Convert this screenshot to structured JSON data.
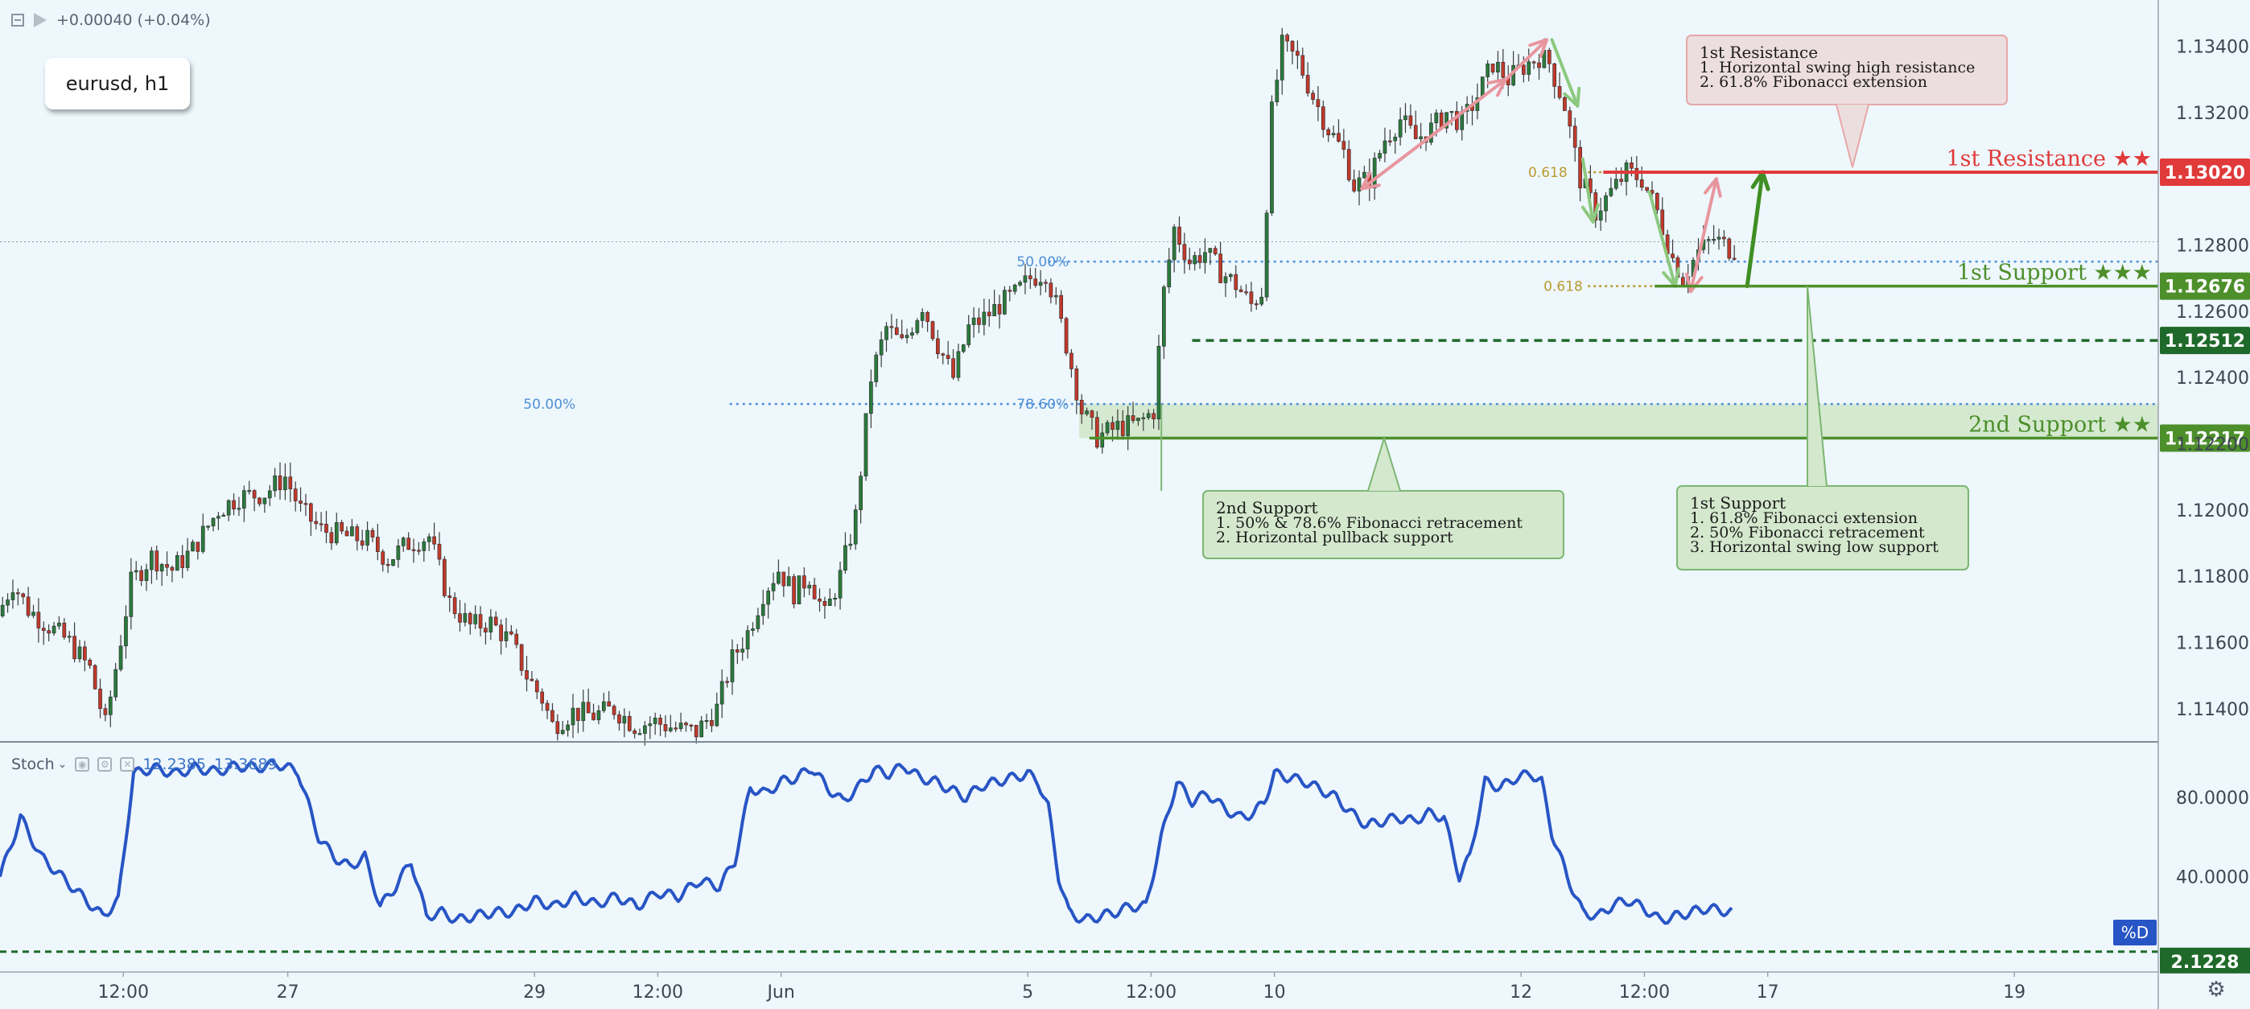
{
  "header": {
    "change_text": "+0.00040 (+0.04%)",
    "symbol_label": "eurusd, h1"
  },
  "colors": {
    "background": "#eef7fc",
    "candle_up": "#2b7a3d",
    "candle_down": "#c0392b",
    "resistance": "#e03a3a",
    "support": "#4d8f2a",
    "support_dark": "#1f6a2a",
    "fib_line": "#4f8fd6",
    "fib_gold": "#b99a30",
    "stoch_line": "#2855c5",
    "arrow_pink": "#e8969e",
    "arrow_green_soft": "#8cc97f",
    "arrow_green": "#3f8f24",
    "arrow_blue_grey": "#8fb0d0"
  },
  "chart_data": {
    "type": "candlestick",
    "price_axis": {
      "min": 1.113,
      "max": 1.1354,
      "ticks": [
        "1.13400",
        "1.13200",
        "1.12800",
        "1.12600",
        "1.12400",
        "1.12200",
        "1.12000",
        "1.11800",
        "1.11600",
        "1.11400"
      ]
    },
    "time_axis": {
      "ticks": [
        {
          "label": "12:00",
          "bar": 24
        },
        {
          "label": "27",
          "bar": 56
        },
        {
          "label": "29",
          "bar": 104
        },
        {
          "label": "12:00",
          "bar": 128
        },
        {
          "label": "Jun",
          "bar": 152
        },
        {
          "label": "5",
          "bar": 200
        },
        {
          "label": "12:00",
          "bar": 224
        },
        {
          "label": "10",
          "bar": 248
        },
        {
          "label": "12",
          "bar": 296
        },
        {
          "label": "12:00",
          "bar": 320
        },
        {
          "label": "17",
          "bar": 344
        },
        {
          "label": "19",
          "bar": 392
        }
      ],
      "bar_count": 420
    },
    "price_path": [
      [
        0,
        1.1168
      ],
      [
        3,
        1.1178
      ],
      [
        6,
        1.117
      ],
      [
        10,
        1.1165
      ],
      [
        14,
        1.116
      ],
      [
        18,
        1.1152
      ],
      [
        21,
        1.1135
      ],
      [
        26,
        1.1178
      ],
      [
        30,
        1.1186
      ],
      [
        34,
        1.1182
      ],
      [
        38,
        1.1188
      ],
      [
        43,
        1.12
      ],
      [
        47,
        1.1204
      ],
      [
        52,
        1.1205
      ],
      [
        56,
        1.121
      ],
      [
        59,
        1.12
      ],
      [
        63,
        1.1194
      ],
      [
        68,
        1.1192
      ],
      [
        72,
        1.1191
      ],
      [
        76,
        1.1185
      ],
      [
        80,
        1.119
      ],
      [
        84,
        1.1192
      ],
      [
        88,
        1.1172
      ],
      [
        92,
        1.1165
      ],
      [
        96,
        1.1166
      ],
      [
        100,
        1.116
      ],
      [
        103,
        1.115
      ],
      [
        106,
        1.1143
      ],
      [
        108,
        1.1135
      ],
      [
        112,
        1.1139
      ],
      [
        116,
        1.1138
      ],
      [
        120,
        1.114
      ],
      [
        124,
        1.1135
      ],
      [
        128,
        1.1136
      ],
      [
        132,
        1.1134
      ],
      [
        136,
        1.1133
      ],
      [
        140,
        1.114
      ],
      [
        143,
        1.1155
      ],
      [
        146,
        1.1163
      ],
      [
        149,
        1.1175
      ],
      [
        152,
        1.1182
      ],
      [
        155,
        1.1175
      ],
      [
        158,
        1.118
      ],
      [
        161,
        1.1168
      ],
      [
        164,
        1.118
      ],
      [
        167,
        1.1198
      ],
      [
        170,
        1.124
      ],
      [
        173,
        1.1255
      ],
      [
        176,
        1.125
      ],
      [
        180,
        1.1262
      ],
      [
        183,
        1.125
      ],
      [
        186,
        1.124
      ],
      [
        189,
        1.1255
      ],
      [
        192,
        1.1258
      ],
      [
        195,
        1.1262
      ],
      [
        198,
        1.1265
      ],
      [
        201,
        1.127
      ],
      [
        204,
        1.1272
      ],
      [
        206,
        1.1262
      ],
      [
        208,
        1.125
      ],
      [
        211,
        1.123
      ],
      [
        214,
        1.1222
      ],
      [
        218,
        1.1225
      ],
      [
        222,
        1.1226
      ],
      [
        225,
        1.123
      ],
      [
        227,
        1.1266
      ],
      [
        229,
        1.1285
      ],
      [
        232,
        1.1275
      ],
      [
        235,
        1.1278
      ],
      [
        238,
        1.1272
      ],
      [
        241,
        1.1268
      ],
      [
        244,
        1.1262
      ],
      [
        246,
        1.1266
      ],
      [
        248,
        1.132
      ],
      [
        250,
        1.134
      ],
      [
        253,
        1.1336
      ],
      [
        256,
        1.1325
      ],
      [
        259,
        1.1315
      ],
      [
        262,
        1.1308
      ],
      [
        264,
        1.1298
      ],
      [
        267,
        1.13
      ],
      [
        270,
        1.1312
      ],
      [
        273,
        1.1318
      ],
      [
        276,
        1.1312
      ],
      [
        279,
        1.1315
      ],
      [
        282,
        1.132
      ],
      [
        285,
        1.1317
      ],
      [
        288,
        1.1325
      ],
      [
        291,
        1.1335
      ],
      [
        294,
        1.133
      ],
      [
        297,
        1.1334
      ],
      [
        300,
        1.1337
      ],
      [
        302,
        1.1335
      ],
      [
        305,
        1.1322
      ],
      [
        308,
        1.13
      ],
      [
        311,
        1.129
      ],
      [
        314,
        1.1296
      ],
      [
        317,
        1.1302
      ],
      [
        320,
        1.13
      ],
      [
        323,
        1.129
      ],
      [
        326,
        1.1276
      ],
      [
        328,
        1.127
      ],
      [
        331,
        1.1278
      ],
      [
        334,
        1.1282
      ],
      [
        337,
        1.1279
      ]
    ],
    "levels": [
      {
        "name": "1st Resistance ★★",
        "price": 1.1302,
        "price_label": "1.13020",
        "color": "#e03a3a"
      },
      {
        "name": "1st Support ★★★",
        "price": 1.12676,
        "price_label": "1.12676",
        "color": "#4d8f2a"
      },
      {
        "name": "",
        "price": 1.12512,
        "price_label": "1.12512",
        "color": "#1f6a2a"
      },
      {
        "name": "2nd Support ★★",
        "price": 1.12217,
        "price_label": "1.12217",
        "color": "#4d8f2a"
      }
    ],
    "fib_labels": [
      {
        "text": "50.00%",
        "price": 1.1232
      },
      {
        "text": "78.60%",
        "price": 1.1232
      },
      {
        "text": "50.00%",
        "price": 1.1275
      },
      {
        "text": "0.618",
        "price": 1.1302
      },
      {
        "text": "0.618",
        "price": 1.12676
      }
    ],
    "annotations": [
      {
        "id": "resistance",
        "title": "1st Resistance",
        "lines": [
          "1. Horizontal swing high resistance",
          "2. 61.8% Fibonacci extension"
        ]
      },
      {
        "id": "support1",
        "title": "1st Support",
        "lines": [
          "1. 61.8% Fibonacci extension",
          "2. 50% Fibonacci retracement",
          "3. Horizontal swing low support"
        ]
      },
      {
        "id": "support2",
        "title": "2nd Support",
        "lines": [
          "1.  50% & 78.6% Fibonacci retracement",
          "2. Horizontal pullback support"
        ]
      }
    ],
    "stochastic": {
      "name": "Stoch",
      "values_label": [
        "12.2385",
        "13.3689"
      ],
      "range": [
        0,
        100
      ],
      "ticks": [
        "80.0000",
        "40.0000"
      ],
      "level": 2.1228,
      "level_label": "2.1228",
      "badge": "%D",
      "path": [
        [
          0,
          40
        ],
        [
          4,
          70
        ],
        [
          8,
          50
        ],
        [
          12,
          40
        ],
        [
          16,
          30
        ],
        [
          20,
          20
        ],
        [
          23,
          28
        ],
        [
          26,
          92
        ],
        [
          30,
          95
        ],
        [
          34,
          92
        ],
        [
          38,
          95
        ],
        [
          42,
          93
        ],
        [
          46,
          96
        ],
        [
          50,
          95
        ],
        [
          54,
          97
        ],
        [
          58,
          93
        ],
        [
          62,
          60
        ],
        [
          65,
          50
        ],
        [
          68,
          45
        ],
        [
          71,
          50
        ],
        [
          74,
          25
        ],
        [
          77,
          35
        ],
        [
          80,
          48
        ],
        [
          83,
          20
        ],
        [
          86,
          22
        ],
        [
          89,
          18
        ],
        [
          92,
          20
        ],
        [
          96,
          22
        ],
        [
          100,
          22
        ],
        [
          104,
          28
        ],
        [
          108,
          25
        ],
        [
          112,
          30
        ],
        [
          116,
          26
        ],
        [
          120,
          30
        ],
        [
          124,
          25
        ],
        [
          128,
          32
        ],
        [
          132,
          30
        ],
        [
          136,
          38
        ],
        [
          140,
          35
        ],
        [
          143,
          48
        ],
        [
          146,
          85
        ],
        [
          149,
          82
        ],
        [
          152,
          88
        ],
        [
          155,
          90
        ],
        [
          158,
          95
        ],
        [
          161,
          85
        ],
        [
          164,
          78
        ],
        [
          167,
          85
        ],
        [
          170,
          94
        ],
        [
          173,
          92
        ],
        [
          176,
          96
        ],
        [
          179,
          90
        ],
        [
          182,
          88
        ],
        [
          185,
          84
        ],
        [
          188,
          80
        ],
        [
          191,
          86
        ],
        [
          194,
          88
        ],
        [
          197,
          90
        ],
        [
          200,
          92
        ],
        [
          202,
          88
        ],
        [
          204,
          75
        ],
        [
          206,
          40
        ],
        [
          208,
          22
        ],
        [
          211,
          18
        ],
        [
          214,
          20
        ],
        [
          217,
          22
        ],
        [
          220,
          25
        ],
        [
          223,
          25
        ],
        [
          226,
          60
        ],
        [
          229,
          88
        ],
        [
          232,
          78
        ],
        [
          235,
          82
        ],
        [
          238,
          75
        ],
        [
          241,
          70
        ],
        [
          244,
          72
        ],
        [
          246,
          78
        ],
        [
          248,
          92
        ],
        [
          251,
          90
        ],
        [
          254,
          88
        ],
        [
          257,
          84
        ],
        [
          260,
          80
        ],
        [
          263,
          72
        ],
        [
          266,
          66
        ],
        [
          269,
          68
        ],
        [
          272,
          70
        ],
        [
          275,
          68
        ],
        [
          278,
          72
        ],
        [
          281,
          70
        ],
        [
          284,
          40
        ],
        [
          286,
          50
        ],
        [
          289,
          88
        ],
        [
          292,
          85
        ],
        [
          295,
          90
        ],
        [
          298,
          92
        ],
        [
          300,
          88
        ],
        [
          302,
          62
        ],
        [
          305,
          40
        ],
        [
          308,
          22
        ],
        [
          311,
          20
        ],
        [
          314,
          26
        ],
        [
          317,
          28
        ],
        [
          320,
          24
        ],
        [
          323,
          18
        ],
        [
          326,
          20
        ],
        [
          329,
          22
        ],
        [
          332,
          24
        ],
        [
          335,
          23
        ],
        [
          337,
          22
        ]
      ]
    }
  }
}
